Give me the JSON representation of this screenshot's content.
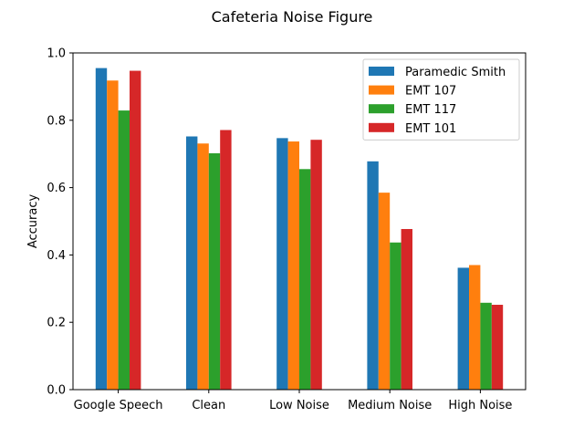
{
  "chart_data": {
    "type": "bar",
    "title": "Cafeteria Noise Figure",
    "xlabel": "",
    "ylabel": "Accuracy",
    "ylim": [
      0,
      1.0
    ],
    "yticks": [
      0.0,
      0.2,
      0.4,
      0.6,
      0.8,
      1.0
    ],
    "ytick_labels": [
      "0.0",
      "0.2",
      "0.4",
      "0.6",
      "0.8",
      "1.0"
    ],
    "grid": false,
    "legend_position": "top-right",
    "categories": [
      "Google Speech",
      "Clean",
      "Low Noise",
      "Medium Noise",
      "High Noise"
    ],
    "series": [
      {
        "name": "Paramedic Smith",
        "color": "#1f77b4",
        "values": [
          0.955,
          0.752,
          0.747,
          0.678,
          0.362
        ]
      },
      {
        "name": "EMT 107",
        "color": "#ff7f0e",
        "values": [
          0.918,
          0.731,
          0.737,
          0.585,
          0.37
        ]
      },
      {
        "name": "EMT 117",
        "color": "#2ca02c",
        "values": [
          0.829,
          0.702,
          0.655,
          0.437,
          0.258
        ]
      },
      {
        "name": "EMT 101",
        "color": "#d62728",
        "values": [
          0.947,
          0.771,
          0.742,
          0.477,
          0.252
        ]
      }
    ]
  }
}
